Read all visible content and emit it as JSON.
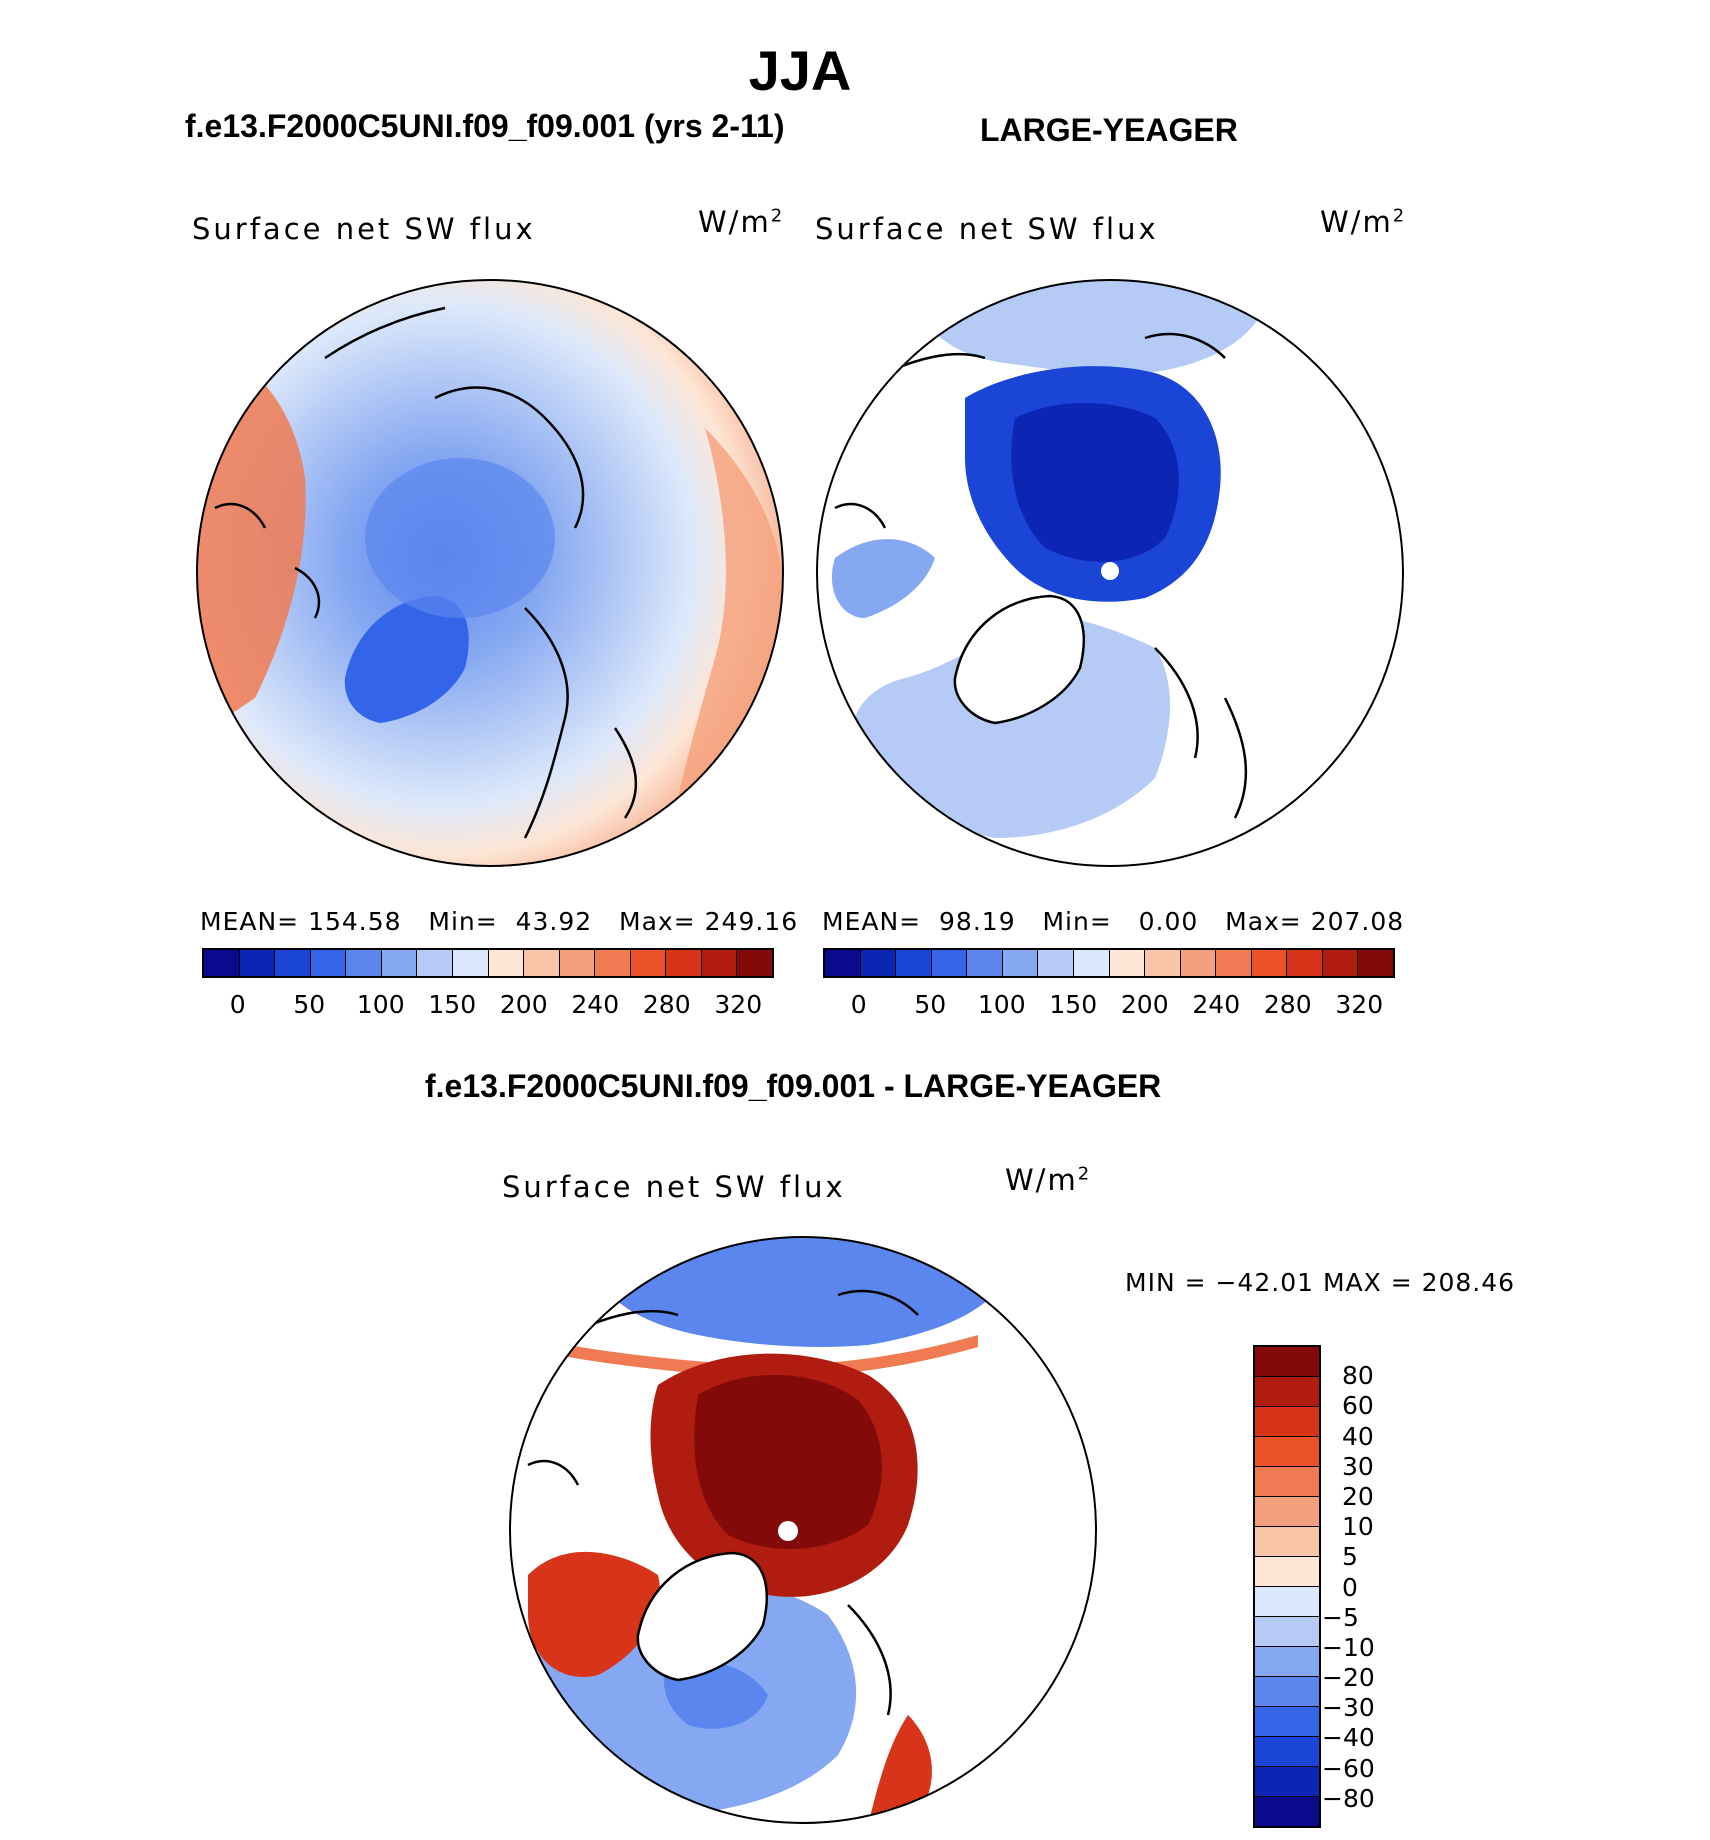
{
  "header": {
    "season": "JJA"
  },
  "panels": [
    {
      "case_title": "f.e13.F2000C5UNI.f09_f09.001 (yrs 2-11)",
      "variable": "Surface net SW flux",
      "units": "W/m",
      "units_exp": "2",
      "stats": {
        "mean_label": "MEAN=",
        "mean": "154.58",
        "min_label": "Min=",
        "min": "43.92",
        "max_label": "Max=",
        "max": "249.16"
      }
    },
    {
      "case_title": "LARGE-YEAGER",
      "variable": "Surface net SW flux",
      "units": "W/m",
      "units_exp": "2",
      "stats": {
        "mean_label": "MEAN=",
        "mean": "98.19",
        "min_label": "Min=",
        "min": "0.00",
        "max_label": "Max=",
        "max": "207.08"
      }
    }
  ],
  "diff_panel": {
    "case_title": "f.e13.F2000C5UNI.f09_f09.001 - LARGE-YEAGER",
    "variable": "Surface net SW flux",
    "units": "W/m",
    "units_exp": "2",
    "minmax": "MIN = −42.01 MAX = 208.46"
  },
  "colorbar_abs": {
    "tick_labels": [
      "0",
      "50",
      "100",
      "150",
      "200",
      "240",
      "280",
      "320"
    ],
    "colors": [
      "#0a0a8c",
      "#0d25b5",
      "#1a45d6",
      "#3464e8",
      "#5b86ee",
      "#86a8f2",
      "#b5cbf6",
      "#dce8fb",
      "#fde6d6",
      "#f9c5a8",
      "#f5a07c",
      "#f07a52",
      "#ea5228",
      "#d7341a",
      "#b01c10",
      "#840a0a"
    ]
  },
  "colorbar_diff": {
    "tick_labels": [
      "80",
      "60",
      "40",
      "30",
      "20",
      "10",
      "5",
      "0",
      "−5",
      "−10",
      "−20",
      "−30",
      "−40",
      "−60",
      "−80"
    ],
    "colors": [
      "#840a0a",
      "#b01c10",
      "#d7341a",
      "#ea5228",
      "#f07a52",
      "#f5a07c",
      "#f9c5a8",
      "#fde6d6",
      "#dce8fb",
      "#b5cbf6",
      "#86a8f2",
      "#5b86ee",
      "#3464e8",
      "#1a45d6",
      "#0d25b5",
      "#0a0a8c"
    ]
  },
  "map_colors": {
    "land_mask": "#ffffff",
    "outline": "#000000"
  }
}
